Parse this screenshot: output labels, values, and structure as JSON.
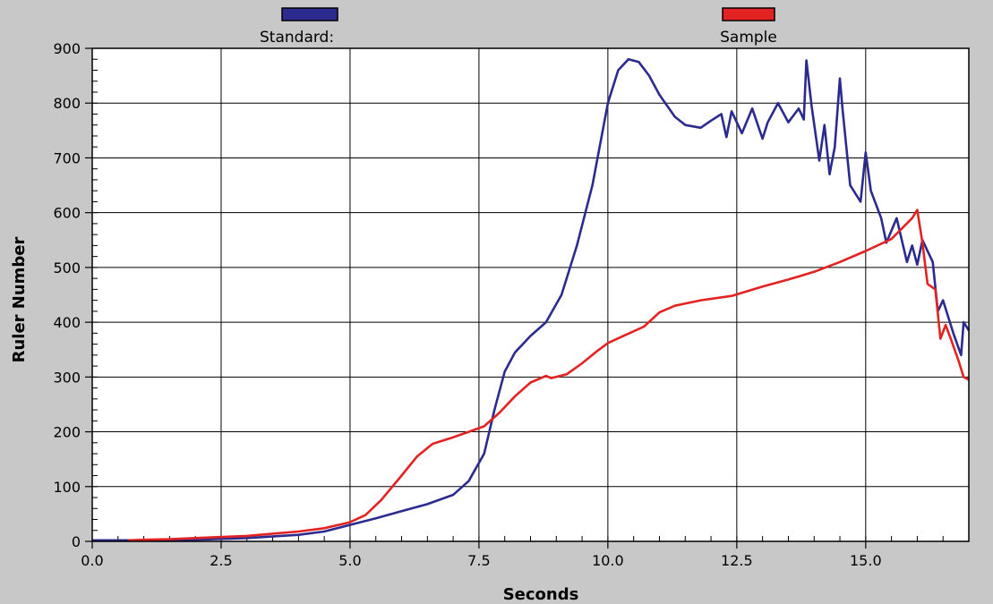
{
  "chart_data": {
    "type": "line",
    "title": "",
    "xlabel": "Seconds",
    "ylabel": "Ruler Number",
    "xlim": [
      0,
      17
    ],
    "ylim": [
      0,
      900
    ],
    "x_ticks": [
      "0.0",
      "2.5",
      "5.0",
      "7.5",
      "10.0",
      "12.5",
      "15.0"
    ],
    "y_ticks": [
      "0",
      "100",
      "200",
      "300",
      "400",
      "500",
      "600",
      "700",
      "800",
      "900"
    ],
    "grid": true,
    "legend_placement": "top",
    "series": [
      {
        "name": "Standard:",
        "color": "#2b2b8f",
        "points": [
          [
            0,
            2
          ],
          [
            1,
            2
          ],
          [
            2,
            3
          ],
          [
            3,
            6
          ],
          [
            4,
            12
          ],
          [
            4.5,
            18
          ],
          [
            5,
            30
          ],
          [
            5.5,
            42
          ],
          [
            6,
            55
          ],
          [
            6.5,
            68
          ],
          [
            7,
            85
          ],
          [
            7.3,
            110
          ],
          [
            7.6,
            160
          ],
          [
            7.8,
            240
          ],
          [
            8.0,
            310
          ],
          [
            8.2,
            345
          ],
          [
            8.5,
            375
          ],
          [
            8.8,
            400
          ],
          [
            9.1,
            450
          ],
          [
            9.4,
            540
          ],
          [
            9.7,
            650
          ],
          [
            10.0,
            800
          ],
          [
            10.2,
            860
          ],
          [
            10.4,
            880
          ],
          [
            10.6,
            875
          ],
          [
            10.8,
            850
          ],
          [
            11.0,
            815
          ],
          [
            11.3,
            775
          ],
          [
            11.5,
            760
          ],
          [
            11.8,
            755
          ],
          [
            12.0,
            768
          ],
          [
            12.2,
            780
          ],
          [
            12.3,
            738
          ],
          [
            12.4,
            785
          ],
          [
            12.6,
            745
          ],
          [
            12.8,
            790
          ],
          [
            13.0,
            735
          ],
          [
            13.1,
            765
          ],
          [
            13.3,
            800
          ],
          [
            13.5,
            765
          ],
          [
            13.7,
            790
          ],
          [
            13.8,
            770
          ],
          [
            13.85,
            878
          ],
          [
            13.95,
            795
          ],
          [
            14.1,
            695
          ],
          [
            14.2,
            760
          ],
          [
            14.3,
            670
          ],
          [
            14.4,
            720
          ],
          [
            14.5,
            845
          ],
          [
            14.55,
            790
          ],
          [
            14.7,
            650
          ],
          [
            14.9,
            620
          ],
          [
            15.0,
            710
          ],
          [
            15.1,
            640
          ],
          [
            15.3,
            590
          ],
          [
            15.4,
            545
          ],
          [
            15.6,
            590
          ],
          [
            15.8,
            510
          ],
          [
            15.9,
            540
          ],
          [
            16.0,
            505
          ],
          [
            16.1,
            550
          ],
          [
            16.3,
            510
          ],
          [
            16.4,
            420
          ],
          [
            16.5,
            440
          ],
          [
            16.7,
            380
          ],
          [
            16.85,
            340
          ],
          [
            16.9,
            400
          ],
          [
            17.0,
            385
          ]
        ]
      },
      {
        "name": "Sample",
        "color": "#e32222",
        "points": [
          [
            0.7,
            2
          ],
          [
            1,
            3
          ],
          [
            1.5,
            4
          ],
          [
            2,
            6
          ],
          [
            2.5,
            8
          ],
          [
            3,
            10
          ],
          [
            3.5,
            14
          ],
          [
            4,
            18
          ],
          [
            4.5,
            24
          ],
          [
            5,
            35
          ],
          [
            5.3,
            48
          ],
          [
            5.6,
            75
          ],
          [
            6,
            120
          ],
          [
            6.3,
            155
          ],
          [
            6.6,
            178
          ],
          [
            7,
            190
          ],
          [
            7.3,
            200
          ],
          [
            7.6,
            210
          ],
          [
            7.9,
            235
          ],
          [
            8.2,
            265
          ],
          [
            8.5,
            290
          ],
          [
            8.8,
            302
          ],
          [
            8.9,
            298
          ],
          [
            9.2,
            305
          ],
          [
            9.5,
            325
          ],
          [
            9.8,
            348
          ],
          [
            10.0,
            362
          ],
          [
            10.3,
            375
          ],
          [
            10.7,
            392
          ],
          [
            11.0,
            418
          ],
          [
            11.3,
            430
          ],
          [
            11.8,
            440
          ],
          [
            12.4,
            448
          ],
          [
            13.0,
            465
          ],
          [
            13.5,
            478
          ],
          [
            14.0,
            492
          ],
          [
            14.5,
            510
          ],
          [
            15.0,
            530
          ],
          [
            15.5,
            552
          ],
          [
            15.9,
            590
          ],
          [
            16.0,
            605
          ],
          [
            16.1,
            545
          ],
          [
            16.2,
            470
          ],
          [
            16.35,
            460
          ],
          [
            16.45,
            370
          ],
          [
            16.55,
            395
          ],
          [
            16.65,
            370
          ],
          [
            16.8,
            330
          ],
          [
            16.9,
            300
          ],
          [
            17.0,
            295
          ]
        ]
      }
    ]
  }
}
